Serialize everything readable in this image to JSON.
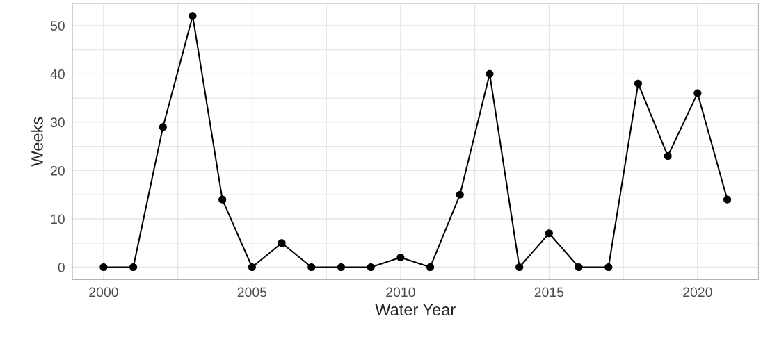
{
  "chart_data": {
    "type": "line",
    "xlabel": "Water Year",
    "ylabel": "Weeks",
    "x": [
      2000,
      2001,
      2002,
      2003,
      2004,
      2005,
      2006,
      2007,
      2008,
      2009,
      2010,
      2011,
      2012,
      2013,
      2014,
      2015,
      2016,
      2017,
      2018,
      2019,
      2020,
      2021
    ],
    "series": [
      {
        "color": "#000000",
        "values": [
          0,
          0,
          29,
          52,
          14,
          0,
          5,
          0,
          0,
          0,
          2,
          0,
          15,
          40,
          0,
          7,
          0,
          0,
          38,
          23,
          36,
          14
        ]
      }
    ],
    "xlim": [
      1998.95,
      2022.05
    ],
    "xticks": [
      2000,
      2005,
      2010,
      2015,
      2020
    ],
    "ylim": [
      -2.6,
      54.6
    ],
    "yticks": [
      0,
      10,
      20,
      30,
      40,
      50
    ],
    "grid": true,
    "marker": "circle",
    "line_style": "solid"
  }
}
